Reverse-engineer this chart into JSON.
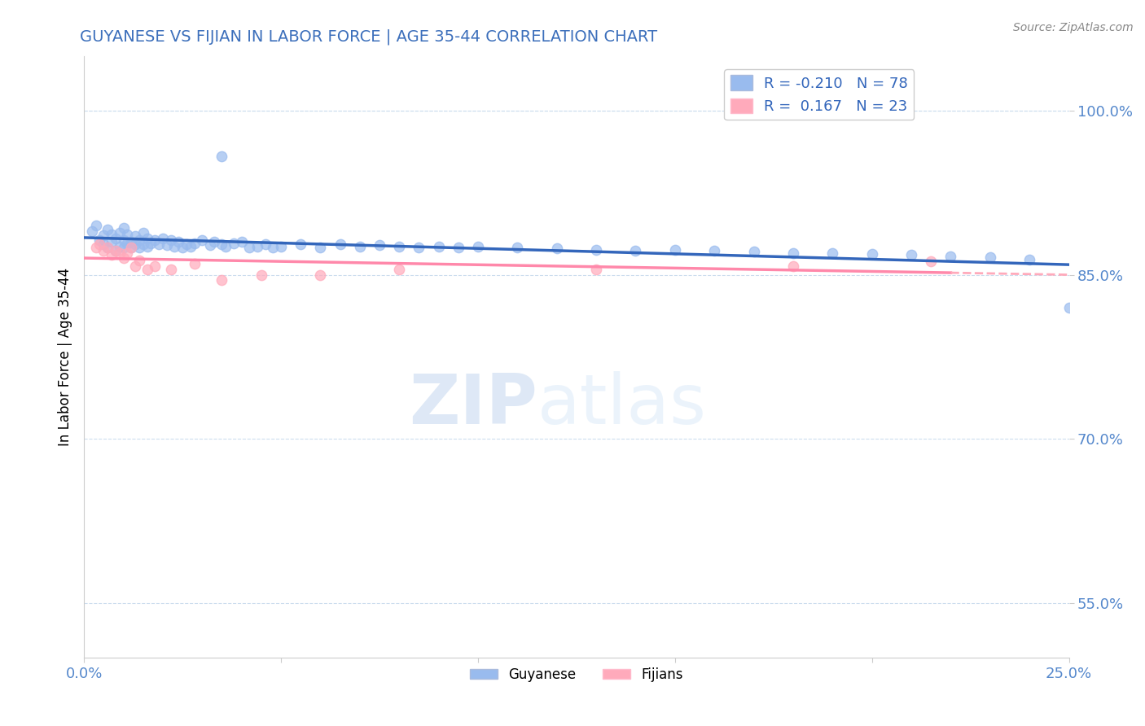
{
  "title": "GUYANESE VS FIJIAN IN LABOR FORCE | AGE 35-44 CORRELATION CHART",
  "source_text": "Source: ZipAtlas.com",
  "ylabel": "In Labor Force | Age 35-44",
  "xlim": [
    0.0,
    0.25
  ],
  "ylim": [
    0.5,
    1.05
  ],
  "xticks": [
    0.0,
    0.05,
    0.1,
    0.15,
    0.2,
    0.25
  ],
  "yticks": [
    0.55,
    0.7,
    0.85,
    1.0
  ],
  "ytick_labels": [
    "55.0%",
    "70.0%",
    "85.0%",
    "100.0%"
  ],
  "xtick_labels": [
    "0.0%",
    "",
    "",
    "",
    "",
    "25.0%"
  ],
  "title_color": "#3c6fbb",
  "title_fontsize": 14,
  "tick_color": "#5588cc",
  "watermark_zip": "ZIP",
  "watermark_atlas": "atlas",
  "legend_R1": "-0.210",
  "legend_N1": "78",
  "legend_R2": "0.167",
  "legend_N2": "23",
  "guyanese_color": "#99bbee",
  "fijian_color": "#ffaabb",
  "guyanese_line_color": "#3366bb",
  "fijian_line_color": "#ff88aa",
  "dashed_line_color": "#ffaabb",
  "scatter_alpha": 0.7,
  "scatter_size": 80,
  "guyanese_x": [
    0.002,
    0.003,
    0.004,
    0.005,
    0.005,
    0.006,
    0.006,
    0.007,
    0.007,
    0.008,
    0.008,
    0.009,
    0.009,
    0.01,
    0.01,
    0.01,
    0.011,
    0.011,
    0.012,
    0.012,
    0.013,
    0.013,
    0.014,
    0.014,
    0.015,
    0.015,
    0.016,
    0.016,
    0.017,
    0.018,
    0.019,
    0.02,
    0.021,
    0.022,
    0.023,
    0.024,
    0.025,
    0.026,
    0.027,
    0.028,
    0.03,
    0.032,
    0.033,
    0.035,
    0.036,
    0.038,
    0.04,
    0.042,
    0.044,
    0.046,
    0.048,
    0.05,
    0.055,
    0.06,
    0.065,
    0.07,
    0.075,
    0.08,
    0.085,
    0.09,
    0.095,
    0.1,
    0.11,
    0.12,
    0.13,
    0.14,
    0.15,
    0.16,
    0.17,
    0.18,
    0.19,
    0.2,
    0.21,
    0.22,
    0.23,
    0.24,
    0.25,
    0.035
  ],
  "guyanese_y": [
    0.89,
    0.895,
    0.882,
    0.878,
    0.886,
    0.891,
    0.875,
    0.88,
    0.887,
    0.872,
    0.883,
    0.876,
    0.888,
    0.875,
    0.882,
    0.893,
    0.879,
    0.887,
    0.88,
    0.875,
    0.885,
    0.878,
    0.882,
    0.875,
    0.888,
    0.878,
    0.883,
    0.876,
    0.879,
    0.882,
    0.878,
    0.883,
    0.877,
    0.882,
    0.876,
    0.88,
    0.875,
    0.878,
    0.876,
    0.879,
    0.882,
    0.877,
    0.88,
    0.878,
    0.876,
    0.879,
    0.88,
    0.875,
    0.876,
    0.878,
    0.875,
    0.876,
    0.878,
    0.875,
    0.878,
    0.876,
    0.877,
    0.876,
    0.875,
    0.876,
    0.875,
    0.876,
    0.875,
    0.874,
    0.873,
    0.872,
    0.873,
    0.872,
    0.871,
    0.87,
    0.87,
    0.869,
    0.868,
    0.867,
    0.866,
    0.864,
    0.82,
    0.958
  ],
  "fijian_x": [
    0.003,
    0.004,
    0.005,
    0.006,
    0.007,
    0.008,
    0.009,
    0.01,
    0.011,
    0.012,
    0.013,
    0.014,
    0.016,
    0.018,
    0.022,
    0.028,
    0.035,
    0.045,
    0.06,
    0.08,
    0.13,
    0.18,
    0.215
  ],
  "fijian_y": [
    0.875,
    0.878,
    0.872,
    0.875,
    0.868,
    0.872,
    0.87,
    0.865,
    0.87,
    0.875,
    0.858,
    0.863,
    0.855,
    0.858,
    0.855,
    0.86,
    0.845,
    0.85,
    0.85,
    0.855,
    0.855,
    0.858,
    0.862
  ],
  "background_color": "#ffffff",
  "grid_color": "#ccddee"
}
